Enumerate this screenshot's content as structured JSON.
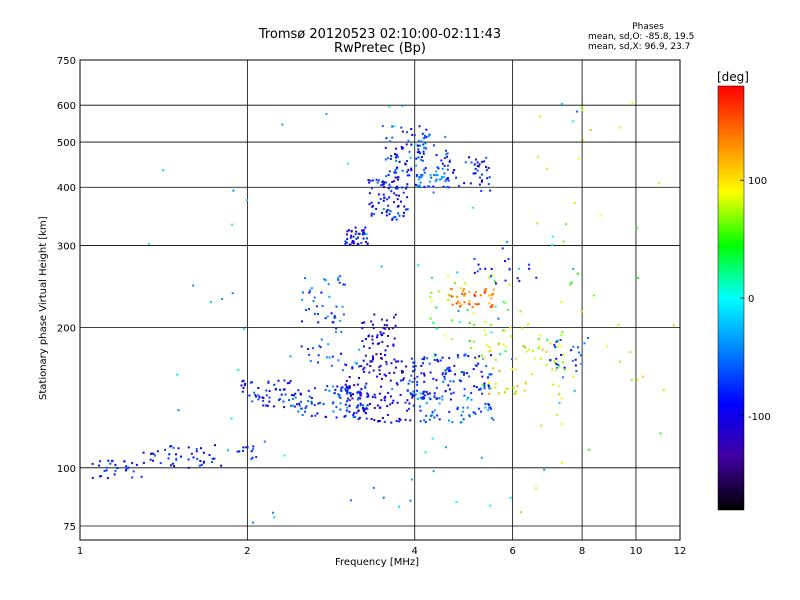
{
  "chart_data": {
    "type": "scatter",
    "title": "Tromsø 20120523 02:10:00-02:11:43",
    "subtitle": "RwPretec (Bp)",
    "xlabel": "Frequency [MHz]",
    "ylabel": "Stationary phase Virtual Height [km]",
    "x_scale": "log",
    "y_scale": "log",
    "xlim": [
      1,
      12
    ],
    "ylim": [
      70,
      750
    ],
    "x_ticks": [
      1,
      2,
      4,
      6,
      8,
      10,
      12
    ],
    "y_ticks": [
      75,
      100,
      200,
      300,
      400,
      500,
      600,
      750
    ],
    "grid": true,
    "phases_box": {
      "heading": "Phases",
      "line1": "mean, sd,O: -85.8, 19.5",
      "line2": "mean, sd,X:  96.9, 23.7"
    },
    "colorbar": {
      "label": "[deg]",
      "range": [
        -180,
        180
      ],
      "ticks": [
        100,
        0,
        -100
      ],
      "colors": [
        "#ff0000",
        "#ff8000",
        "#ffff00",
        "#00ff00",
        "#00ffff",
        "#0080ff",
        "#0000ff",
        "#4000a0",
        "#000000"
      ]
    },
    "clusters": [
      {
        "x": [
          1.05,
          1.3
        ],
        "y": [
          95,
          104
        ],
        "phase": -90,
        "n": 30
      },
      {
        "x": [
          1.3,
          1.8
        ],
        "y": [
          100,
          112
        ],
        "phase": -85,
        "n": 45
      },
      {
        "x": [
          1.9,
          2.1
        ],
        "y": [
          104,
          112
        ],
        "phase": -80,
        "n": 12
      },
      {
        "x": [
          1.95,
          2.5
        ],
        "y": [
          135,
          155
        ],
        "phase": -85,
        "n": 60
      },
      {
        "x": [
          2.4,
          3.3
        ],
        "y": [
          128,
          150
        ],
        "phase": -70,
        "n": 90
      },
      {
        "x": [
          3.0,
          4.0
        ],
        "y": [
          125,
          170
        ],
        "phase": -100,
        "n": 130
      },
      {
        "x": [
          3.2,
          3.7
        ],
        "y": [
          160,
          215
        ],
        "phase": -110,
        "n": 60
      },
      {
        "x": [
          3.8,
          5.5
        ],
        "y": [
          140,
          175
        ],
        "phase": -80,
        "n": 130
      },
      {
        "x": [
          4.0,
          5.6
        ],
        "y": [
          125,
          145
        ],
        "phase": -50,
        "n": 60
      },
      {
        "x": [
          2.5,
          3.0
        ],
        "y": [
          160,
          260
        ],
        "phase": -60,
        "n": 60
      },
      {
        "x": [
          3.0,
          3.3
        ],
        "y": [
          300,
          330
        ],
        "phase": -95,
        "n": 40
      },
      {
        "x": [
          3.3,
          3.9
        ],
        "y": [
          340,
          420
        ],
        "phase": -90,
        "n": 80
      },
      {
        "x": [
          3.5,
          4.2
        ],
        "y": [
          420,
          550
        ],
        "phase": -80,
        "n": 70
      },
      {
        "x": [
          4.0,
          4.6
        ],
        "y": [
          400,
          520
        ],
        "phase": -60,
        "n": 60
      },
      {
        "x": [
          4.5,
          5.6
        ],
        "y": [
          390,
          470
        ],
        "phase": -85,
        "n": 50
      },
      {
        "x": [
          4.6,
          5.6
        ],
        "y": [
          220,
          245
        ],
        "phase": 140,
        "n": 45
      },
      {
        "x": [
          4.2,
          6.0
        ],
        "y": [
          170,
          260
        ],
        "phase": 60,
        "n": 40
      },
      {
        "x": [
          5.3,
          7.5
        ],
        "y": [
          140,
          200
        ],
        "phase": 90,
        "n": 70
      },
      {
        "x": [
          7.0,
          8.3
        ],
        "y": [
          160,
          190
        ],
        "phase": -70,
        "n": 25
      },
      {
        "x": [
          5.0,
          6.8
        ],
        "y": [
          235,
          300
        ],
        "phase": -90,
        "n": 20
      },
      {
        "x": [
          6.0,
          12.0
        ],
        "y": [
          80,
          650
        ],
        "phase": 80,
        "n": 45
      },
      {
        "x": [
          1.3,
          8.0
        ],
        "y": [
          75,
          650
        ],
        "phase": -20,
        "n": 80
      }
    ]
  }
}
